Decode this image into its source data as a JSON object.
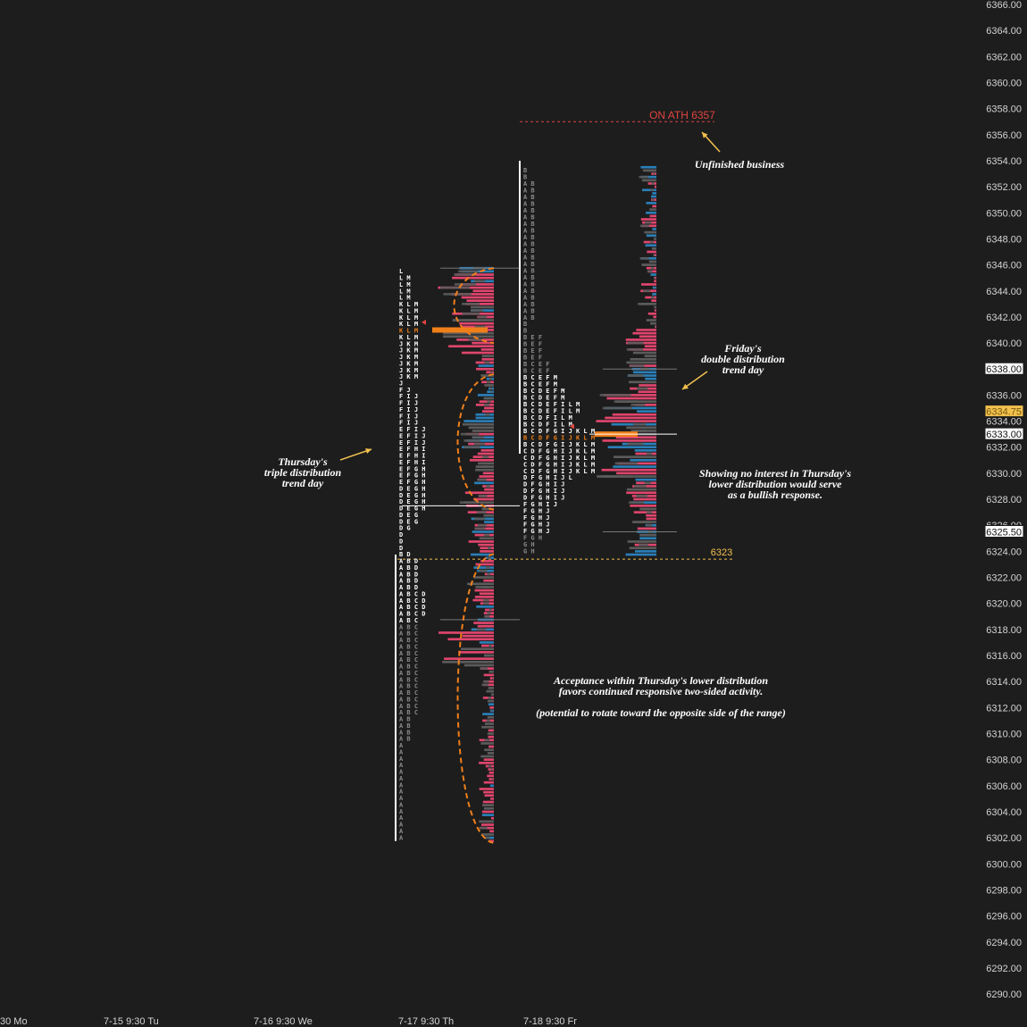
{
  "chart_data": {
    "type": "market-profile",
    "y_axis": {
      "range": [
        6289,
        6366
      ],
      "ticks": [
        6366,
        6364,
        6362,
        6360,
        6358,
        6356,
        6354,
        6352,
        6350,
        6348,
        6346,
        6344,
        6342,
        6340,
        6338,
        6336,
        6334,
        6332,
        6330,
        6328,
        6326,
        6324,
        6322,
        6320,
        6318,
        6316,
        6314,
        6312,
        6310,
        6308,
        6306,
        6304,
        6302,
        6300,
        6298,
        6296,
        6294,
        6292,
        6290
      ],
      "tick_format": "2dp",
      "position": "right"
    },
    "x_axis": {
      "labels": [
        "30 Mo",
        "7-15  9:30 Tu",
        "7-16  9:30 We",
        "7-17  9:30 Th",
        "7-18  9:30 Fr"
      ]
    },
    "price_tags": [
      {
        "price": 6338.0,
        "label": "6338.00",
        "style": "white"
      },
      {
        "price": 6334.75,
        "label": "6334.75",
        "style": "gold"
      },
      {
        "price": 6333.0,
        "label": "6333.00",
        "style": "white"
      },
      {
        "price": 6325.5,
        "label": "6325.50",
        "style": "white"
      }
    ],
    "annotations": [
      {
        "id": "ath",
        "text": "ON ATH 6357",
        "price": 6357,
        "color": "#e0453f"
      },
      {
        "id": "level",
        "text": "6323",
        "price": 6323.4,
        "color": "#f2c14e"
      }
    ],
    "notes": [
      {
        "id": "unfinished",
        "lines": [
          "Unfinished business"
        ]
      },
      {
        "id": "friday",
        "lines": [
          "Friday's",
          "double distribution",
          "trend day"
        ]
      },
      {
        "id": "thursday",
        "lines": [
          "Thursday's",
          "triple distribution",
          "trend day"
        ]
      },
      {
        "id": "interest",
        "lines": [
          "Showing no interest in Thursday's",
          "lower distribution would serve",
          "as a bullish response."
        ]
      },
      {
        "id": "acceptance",
        "lines": [
          "Acceptance within Thursday's lower distribution",
          "favors continued responsive two-sided activity."
        ]
      },
      {
        "id": "potential",
        "lines": [
          "(potential to rotate toward the opposite side of the range)"
        ]
      }
    ],
    "profiles": [
      {
        "session": "Thursday 7-17",
        "price_high": 6345.75,
        "price_low": 6301.75,
        "poc": 6341.0,
        "vah": 6345.75,
        "val": 6318.75,
        "tpo_rows": [
          [
            "L"
          ],
          [
            "L",
            "M"
          ],
          [
            "L",
            "M"
          ],
          [
            "L",
            "M"
          ],
          [
            "L",
            "M"
          ],
          [
            "K",
            "L",
            "M"
          ],
          [
            "K",
            "L",
            "M"
          ],
          [
            "K",
            "L",
            "M"
          ],
          [
            "K",
            "L",
            "M"
          ],
          [
            "K",
            "L",
            "M"
          ],
          [
            "K",
            "L",
            "M"
          ],
          [
            "J",
            "K",
            "M"
          ],
          [
            "J",
            "K",
            "M"
          ],
          [
            "J",
            "K",
            "M"
          ],
          [
            "J",
            "K",
            "M"
          ],
          [
            "J",
            "K",
            "M"
          ],
          [
            "J",
            "K",
            "M"
          ],
          [
            "J"
          ],
          [
            "F",
            "J"
          ],
          [
            "F",
            "I",
            "J"
          ],
          [
            "F",
            "I",
            "J"
          ],
          [
            "F",
            "I",
            "J"
          ],
          [
            "F",
            "I",
            "J"
          ],
          [
            "F",
            "I",
            "J"
          ],
          [
            "E",
            "F",
            "I",
            "J"
          ],
          [
            "E",
            "F",
            "I",
            "J"
          ],
          [
            "E",
            "F",
            "I",
            "J"
          ],
          [
            "E",
            "F",
            "H",
            "I"
          ],
          [
            "E",
            "F",
            "H",
            "I"
          ],
          [
            "E",
            "F",
            "H",
            "I"
          ],
          [
            "E",
            "F",
            "G",
            "H"
          ],
          [
            "E",
            "F",
            "G",
            "H"
          ],
          [
            "E",
            "F",
            "G",
            "H"
          ],
          [
            "D",
            "E",
            "G",
            "H"
          ],
          [
            "D",
            "E",
            "G",
            "H"
          ],
          [
            "D",
            "E",
            "G",
            "H"
          ],
          [
            "D",
            "E",
            "G",
            "H"
          ],
          [
            "D",
            "E",
            "G"
          ],
          [
            "D",
            "E",
            "G"
          ],
          [
            "D",
            "G"
          ],
          [
            "D"
          ],
          [
            "D"
          ],
          [
            "D"
          ],
          [
            "B",
            "D"
          ],
          [
            "A",
            "B",
            "D"
          ],
          [
            "A",
            "B",
            "D"
          ],
          [
            "A",
            "B",
            "D"
          ],
          [
            "A",
            "B",
            "D"
          ],
          [
            "A",
            "B",
            "D"
          ],
          [
            "A",
            "B",
            "C",
            "D"
          ],
          [
            "A",
            "B",
            "C",
            "D"
          ],
          [
            "A",
            "B",
            "C",
            "D"
          ],
          [
            "A",
            "B",
            "C",
            "D"
          ],
          [
            "A",
            "B",
            "C"
          ],
          [
            "A",
            "B",
            "C"
          ],
          [
            "A",
            "B",
            "C"
          ],
          [
            "A",
            "B",
            "C"
          ],
          [
            "A",
            "B",
            "C"
          ],
          [
            "A",
            "B",
            "C"
          ],
          [
            "A",
            "B",
            "C"
          ],
          [
            "A",
            "B",
            "C"
          ],
          [
            "A",
            "B",
            "C"
          ],
          [
            "A",
            "B",
            "C"
          ],
          [
            "A",
            "B",
            "C"
          ],
          [
            "A",
            "B",
            "C"
          ],
          [
            "A",
            "B",
            "C"
          ],
          [
            "A",
            "B",
            "C"
          ],
          [
            "A",
            "B",
            "C"
          ],
          [
            "A",
            "B"
          ],
          [
            "A",
            "B"
          ],
          [
            "A",
            "B"
          ],
          [
            "A",
            "B"
          ],
          [
            "A"
          ],
          [
            "A"
          ],
          [
            "A"
          ],
          [
            "A"
          ],
          [
            "A"
          ],
          [
            "A"
          ],
          [
            "A"
          ],
          [
            "A"
          ],
          [
            "A"
          ],
          [
            "A"
          ],
          [
            "A"
          ],
          [
            "A"
          ],
          [
            "A"
          ],
          [
            "A"
          ],
          [
            "A"
          ]
        ]
      },
      {
        "session": "Friday 7-18",
        "price_high": 6353.5,
        "price_low": 6323.75,
        "poc": 6333.0,
        "vah": 6338.0,
        "val": 6325.5,
        "tpo_rows": [
          [
            "B"
          ],
          [
            "B"
          ],
          [
            "A",
            "B"
          ],
          [
            "A",
            "B"
          ],
          [
            "A",
            "B"
          ],
          [
            "A",
            "B"
          ],
          [
            "A",
            "B"
          ],
          [
            "A",
            "B"
          ],
          [
            "A",
            "B"
          ],
          [
            "A",
            "B"
          ],
          [
            "A",
            "B"
          ],
          [
            "A",
            "B"
          ],
          [
            "A",
            "B"
          ],
          [
            "A",
            "B"
          ],
          [
            "A",
            "B"
          ],
          [
            "A",
            "B"
          ],
          [
            "A",
            "B"
          ],
          [
            "A",
            "B"
          ],
          [
            "A",
            "B"
          ],
          [
            "A",
            "B"
          ],
          [
            "A",
            "B"
          ],
          [
            "A",
            "B"
          ],
          [
            "A",
            "B"
          ],
          [
            "B"
          ],
          [
            "B"
          ],
          [
            "B",
            "E",
            "F"
          ],
          [
            "B",
            "E",
            "F"
          ],
          [
            "B",
            "E",
            "F"
          ],
          [
            "B",
            "E",
            "F"
          ],
          [
            "B",
            "C",
            "E",
            "F"
          ],
          [
            "B",
            "C",
            "E",
            "F"
          ],
          [
            "B",
            "C",
            "E",
            "F",
            "M"
          ],
          [
            "B",
            "C",
            "E",
            "F",
            "M"
          ],
          [
            "B",
            "C",
            "D",
            "E",
            "F",
            "M"
          ],
          [
            "B",
            "C",
            "D",
            "E",
            "F",
            "M"
          ],
          [
            "B",
            "C",
            "D",
            "E",
            "F",
            "I",
            "L",
            "M"
          ],
          [
            "B",
            "C",
            "D",
            "E",
            "F",
            "I",
            "L",
            "M"
          ],
          [
            "B",
            "C",
            "D",
            "F",
            "I",
            "L",
            "M"
          ],
          [
            "B",
            "C",
            "D",
            "F",
            "I",
            "L",
            "M"
          ],
          [
            "B",
            "C",
            "D",
            "F",
            "G",
            "I",
            "J",
            "K",
            "L",
            "M"
          ],
          [
            "B",
            "C",
            "D",
            "F",
            "G",
            "I",
            "J",
            "K",
            "L",
            "M"
          ],
          [
            "B",
            "C",
            "D",
            "F",
            "G",
            "I",
            "J",
            "K",
            "L",
            "M"
          ],
          [
            "C",
            "D",
            "F",
            "G",
            "H",
            "I",
            "J",
            "K",
            "L",
            "M"
          ],
          [
            "C",
            "D",
            "F",
            "G",
            "H",
            "I",
            "J",
            "K",
            "L",
            "M"
          ],
          [
            "C",
            "D",
            "F",
            "G",
            "H",
            "I",
            "J",
            "K",
            "L",
            "M"
          ],
          [
            "C",
            "D",
            "F",
            "G",
            "H",
            "I",
            "J",
            "K",
            "L",
            "M"
          ],
          [
            "D",
            "F",
            "G",
            "H",
            "I",
            "J",
            "L"
          ],
          [
            "D",
            "F",
            "G",
            "H",
            "I",
            "J"
          ],
          [
            "D",
            "F",
            "G",
            "H",
            "I",
            "J"
          ],
          [
            "D",
            "F",
            "G",
            "H",
            "I",
            "J"
          ],
          [
            "F",
            "G",
            "H",
            "I",
            "J"
          ],
          [
            "F",
            "G",
            "H",
            "J"
          ],
          [
            "F",
            "G",
            "H",
            "J"
          ],
          [
            "F",
            "G",
            "H",
            "J"
          ],
          [
            "F",
            "G",
            "H",
            "J"
          ],
          [
            "F",
            "G",
            "H"
          ],
          [
            "G",
            "H"
          ],
          [
            "G",
            "H"
          ]
        ]
      }
    ],
    "colors": {
      "background": "#1d1d1d",
      "buy": "#e0456d",
      "sell": "#2a7fb8",
      "neutral": "#5b5b5b",
      "poc": "#f07f1a",
      "ellipse": "#f07f1a",
      "ath_line": "#e0453f",
      "level_line": "#f2c14e",
      "tpo_active": "#ffffff",
      "tpo_faded": "#8a8a8a",
      "tpo_poc": "#f07f1a"
    },
    "grid": false,
    "legend": "none"
  }
}
